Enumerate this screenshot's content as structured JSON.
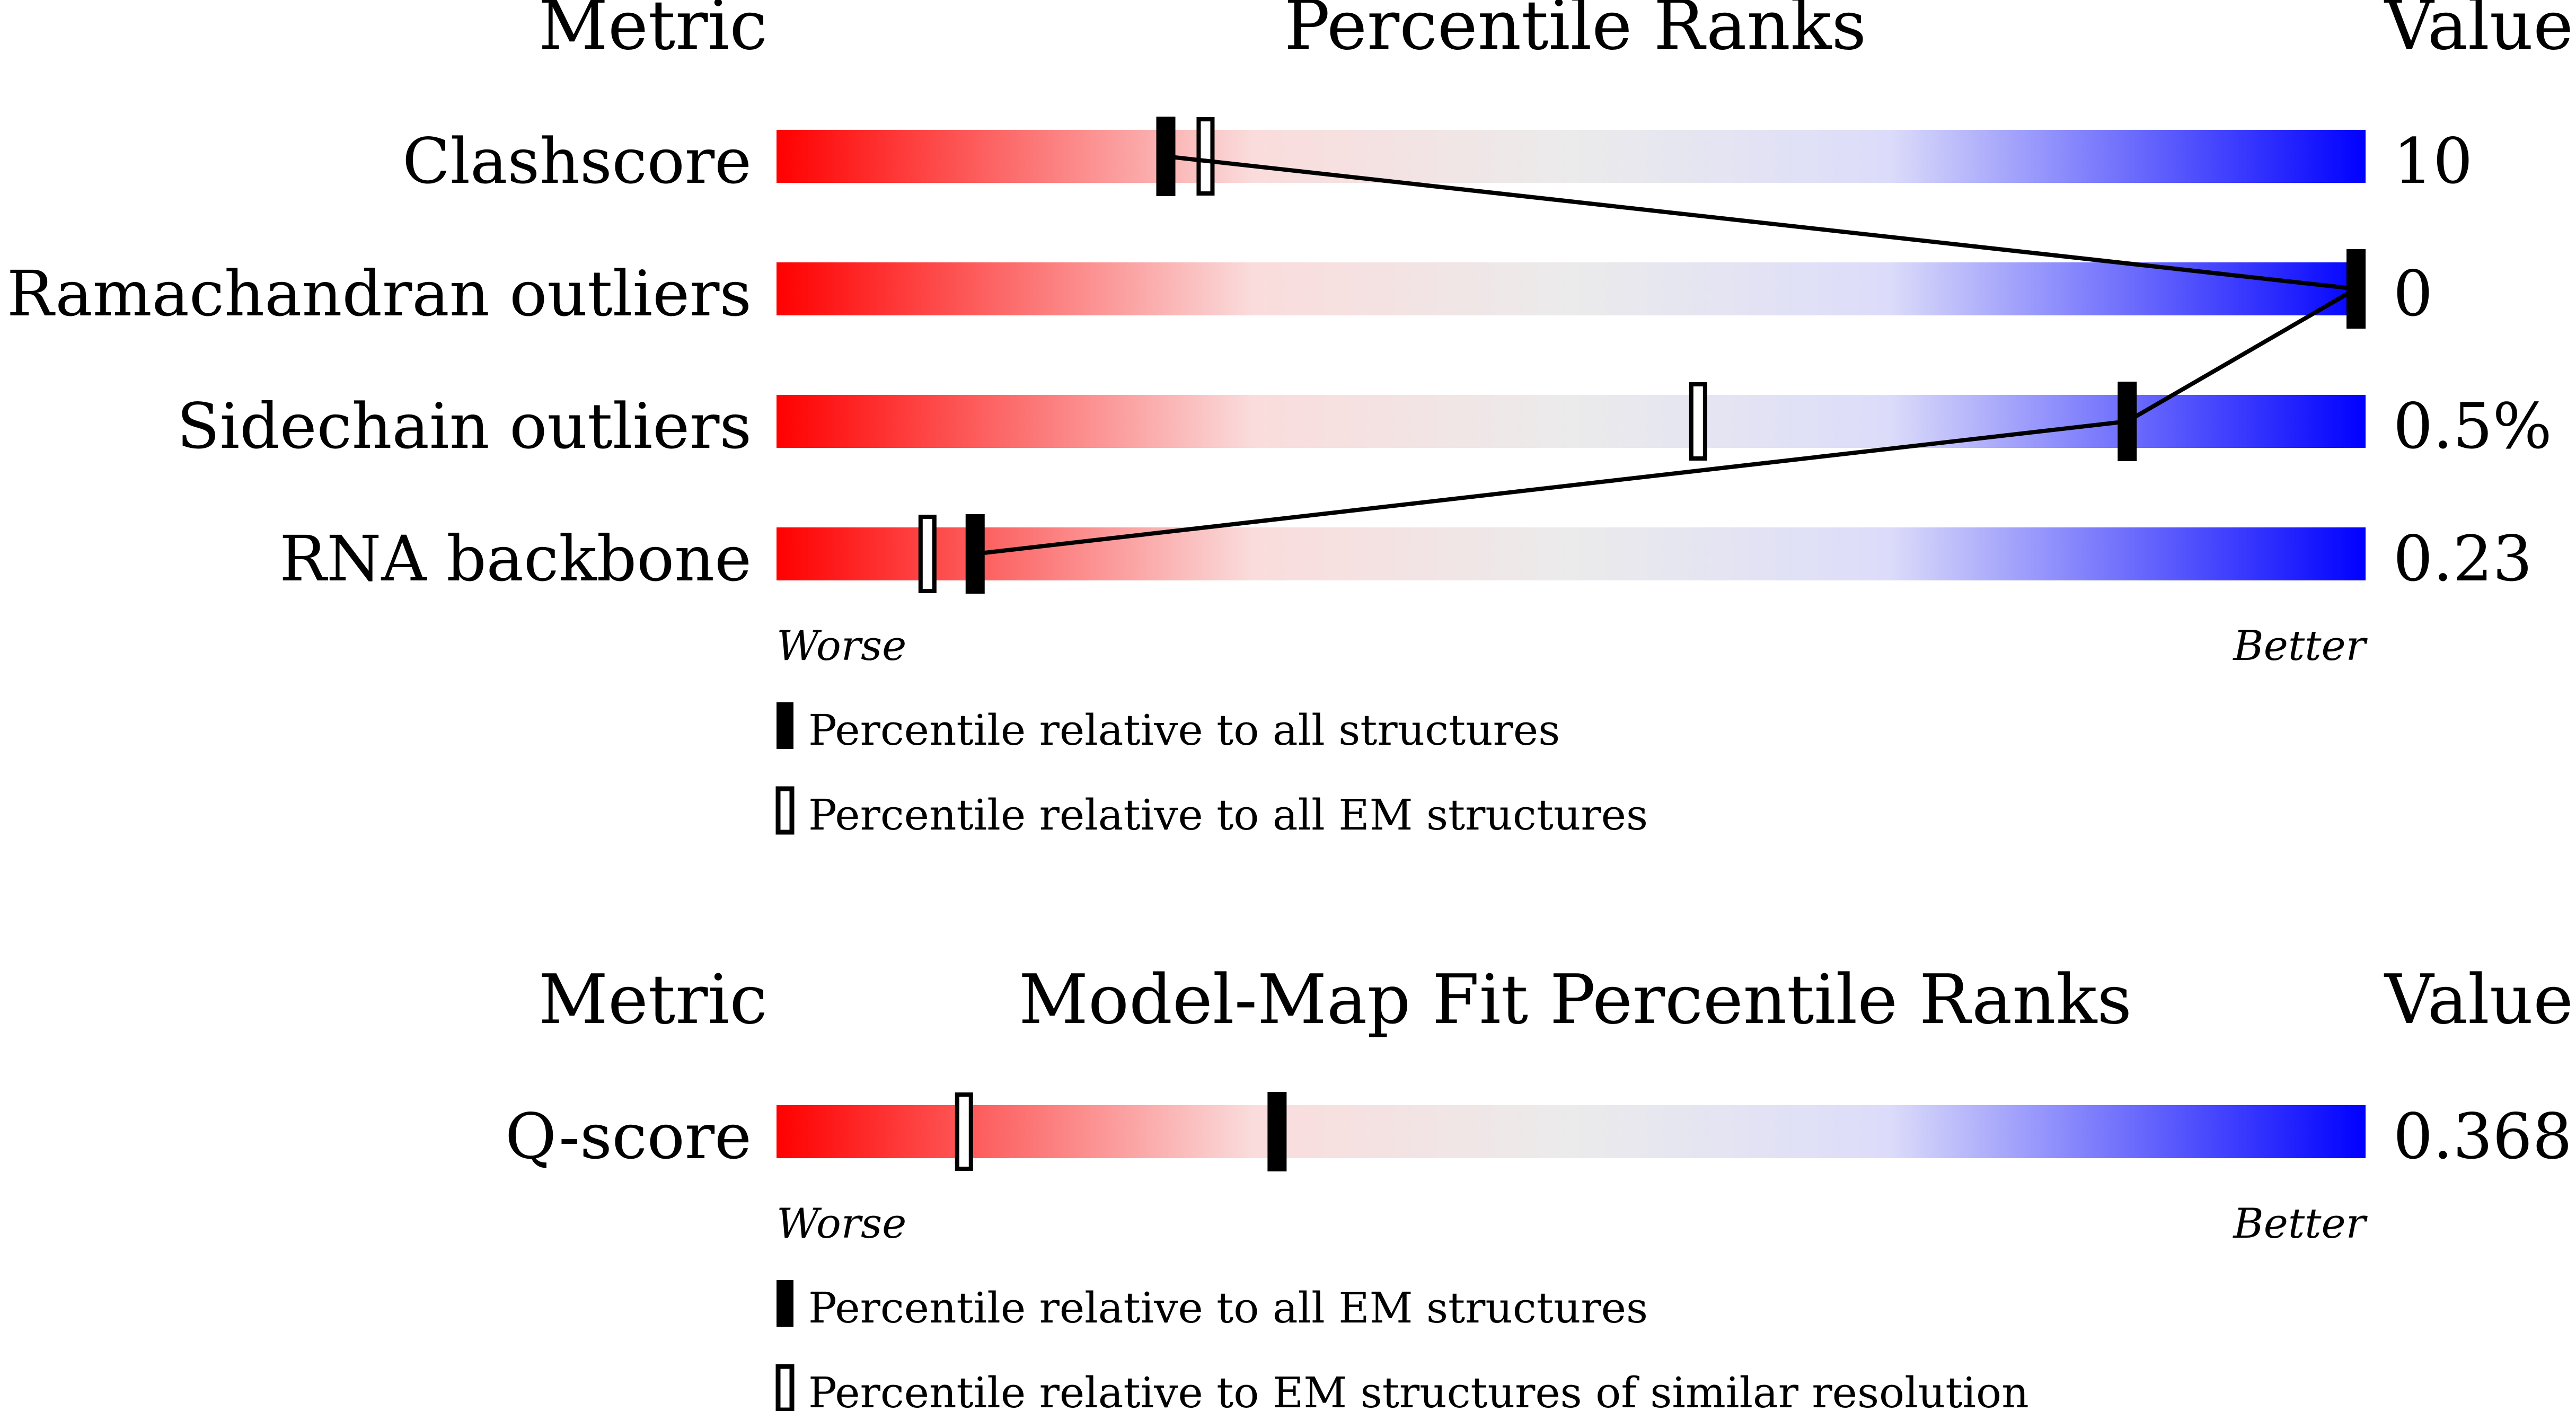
{
  "colors": {
    "worse": "#ff0000",
    "mid_light_red": "#fadcdc",
    "mid_gray": "#ebebeb",
    "mid_light_blue": "#dcdcfa",
    "better": "#0000ff",
    "marker": "#000000"
  },
  "chart_data": [
    {
      "type": "bar",
      "title": "Percentile Ranks",
      "metric_header": "Metric",
      "value_header": "Value",
      "axis_worse_label": "Worse",
      "axis_better_label": "Better",
      "percentile_range": [
        0,
        100
      ],
      "metrics": [
        {
          "label": "Clashscore",
          "value": "10",
          "percentile_all": 24.5,
          "percentile_secondary": 27
        },
        {
          "label": "Ramachandran outliers",
          "value": "0",
          "percentile_all": 100,
          "percentile_secondary": 100
        },
        {
          "label": "Sidechain outliers",
          "value": "0.5%",
          "percentile_all": 85,
          "percentile_secondary": 58
        },
        {
          "label": "RNA backbone",
          "value": "0.23",
          "percentile_all": 12.5,
          "percentile_secondary": 9.5
        }
      ],
      "connect_all_percentiles": true,
      "legend": [
        {
          "marker": "filled",
          "label": "Percentile relative to all structures"
        },
        {
          "marker": "hollow",
          "label": "Percentile relative to all EM structures"
        }
      ]
    },
    {
      "type": "bar",
      "title": "Model-Map Fit Percentile Ranks",
      "metric_header": "Metric",
      "value_header": "Value",
      "axis_worse_label": "Worse",
      "axis_better_label": "Better",
      "percentile_range": [
        0,
        100
      ],
      "metrics": [
        {
          "label": "Q-score",
          "value": "0.368",
          "percentile_all": 31.5,
          "percentile_secondary": 11.8
        }
      ],
      "connect_all_percentiles": false,
      "legend": [
        {
          "marker": "filled",
          "label": "Percentile relative to all EM structures"
        },
        {
          "marker": "hollow",
          "label": "Percentile relative to EM structures of similar resolution"
        }
      ]
    }
  ]
}
